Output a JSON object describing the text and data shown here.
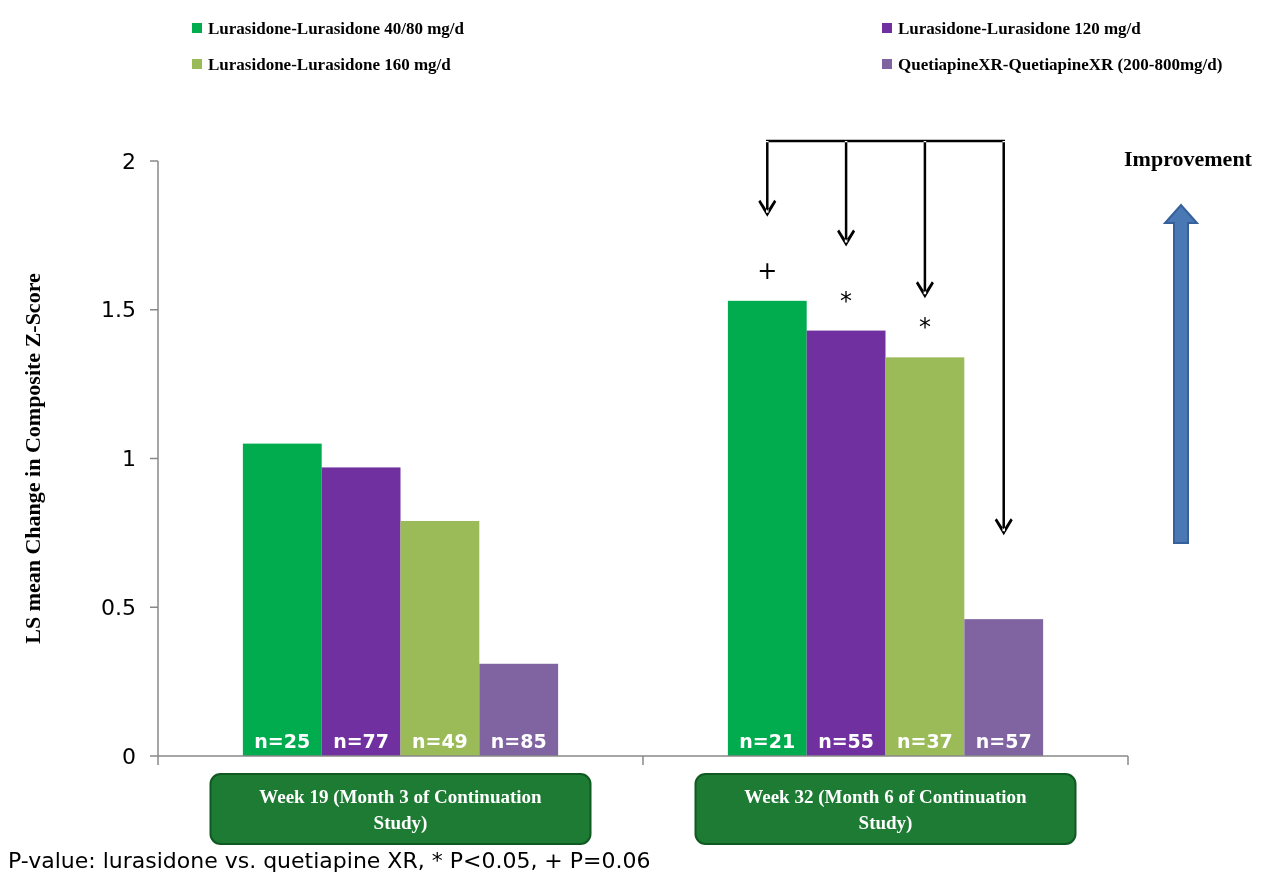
{
  "chart_data": {
    "type": "bar",
    "ylabel": "LS mean Change in Composite Z-Score",
    "categories": [
      "Week 19 (Month 3 of Continuation Study)",
      "Week 32 (Month 6 of Continuation Study)"
    ],
    "series": [
      {
        "name": "Lurasidone-Lurasidone 40/80 mg/d",
        "color": "#00ac4e",
        "values": [
          1.05,
          1.53
        ]
      },
      {
        "name": "Lurasidone-Lurasidone 120 mg/d",
        "color": "#7030a0",
        "values": [
          0.97,
          1.43
        ]
      },
      {
        "name": "Lurasidone-Lurasidone 160 mg/d",
        "color": "#9bbb59",
        "values": [
          0.79,
          1.34
        ]
      },
      {
        "name": "QuetiapineXR-QuetiapineXR (200-800mg/d)",
        "color": "#8064a2",
        "values": [
          0.31,
          0.46
        ]
      }
    ],
    "ylim": [
      0,
      2
    ],
    "yticks": [
      0,
      0.5,
      1,
      1.5,
      2
    ],
    "legend": "top",
    "annotations": [
      "n=25",
      "n=77",
      "n=49",
      "n=85",
      "n=21",
      "n=55",
      "n=37",
      "n=57",
      "+",
      "*",
      "*",
      "Improvement",
      "P-value: lurasidone vs. quetiapine XR, * P<0.05, + P=0.06"
    ]
  }
}
